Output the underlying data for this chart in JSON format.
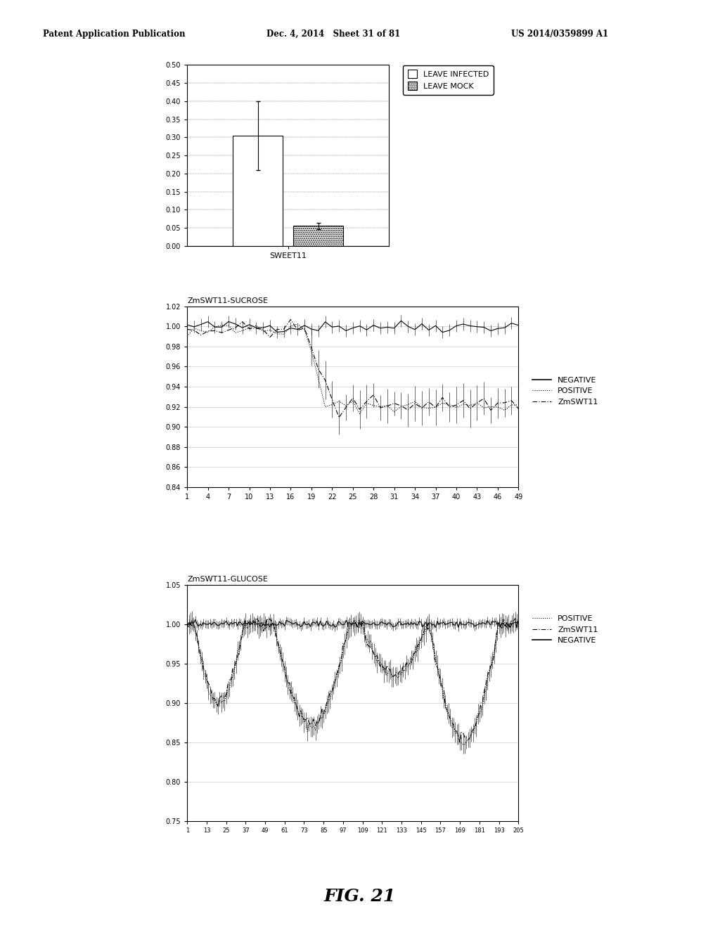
{
  "header_left": "Patent Application Publication",
  "header_mid": "Dec. 4, 2014   Sheet 31 of 81",
  "header_right": "US 2014/0359899 A1",
  "footer": "FIG. 21",
  "bar_categories": [
    "SWEET11"
  ],
  "bar_infected": [
    0.305
  ],
  "bar_mock": [
    0.055
  ],
  "bar_infected_err": [
    0.095
  ],
  "bar_mock_err": [
    0.008
  ],
  "bar_ylim": [
    0,
    0.5
  ],
  "bar_yticks": [
    0,
    0.05,
    0.1,
    0.15,
    0.2,
    0.25,
    0.3,
    0.35,
    0.4,
    0.45,
    0.5
  ],
  "bar_legend": [
    "LEAVE INFECTED",
    "LEAVE MOCK"
  ],
  "sucrose_title": "ZmSWT11-SUCROSE",
  "sucrose_xticks": [
    1,
    4,
    7,
    10,
    13,
    16,
    19,
    22,
    25,
    28,
    31,
    34,
    37,
    40,
    43,
    46,
    49
  ],
  "sucrose_ylim": [
    0.84,
    1.02
  ],
  "sucrose_yticks": [
    0.84,
    0.86,
    0.88,
    0.9,
    0.92,
    0.94,
    0.96,
    0.98,
    1.0,
    1.02
  ],
  "sucrose_legend": [
    "NEGATIVE",
    "POSITIVE",
    "ZmSWT11"
  ],
  "glucose_title": "ZmSWT11-GLUCOSE",
  "glucose_xticks": [
    1,
    13,
    25,
    37,
    49,
    61,
    73,
    85,
    97,
    109,
    121,
    133,
    145,
    157,
    169,
    181,
    193,
    205
  ],
  "glucose_ylim": [
    0.75,
    1.05
  ],
  "glucose_yticks": [
    0.75,
    0.8,
    0.85,
    0.9,
    0.95,
    1.0,
    1.05
  ],
  "glucose_legend": [
    "POSITIVE",
    "ZmSWT11",
    "NEGATIVE"
  ],
  "bg_color": "#ffffff",
  "font_size": 8,
  "axis_font_size": 7
}
